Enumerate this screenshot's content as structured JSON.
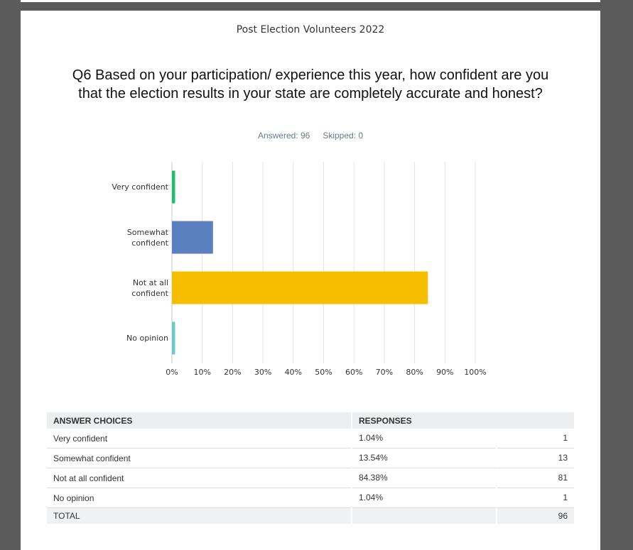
{
  "header": {
    "survey_title": "Post Election Volunteers 2022",
    "question": "Q6 Based on your participation/ experience this year, how confident are you that the election results in your state are completely accurate and honest?",
    "answered": "Answered: 96",
    "skipped": "Skipped: 0"
  },
  "chart_data": {
    "type": "bar",
    "orientation": "horizontal",
    "categories": [
      "Very confident",
      "Somewhat confident",
      "Not at all confident",
      "No opinion"
    ],
    "values": [
      1.04,
      13.54,
      84.38,
      1.04
    ],
    "colors": [
      "#1ebf6a",
      "#5a80bf",
      "#f7be00",
      "#6fcbcb"
    ],
    "xlim": [
      0,
      100
    ],
    "xticks": [
      {
        "value": 0,
        "label": "0%"
      },
      {
        "value": 10,
        "label": "10%"
      },
      {
        "value": 20,
        "label": "20%"
      },
      {
        "value": 30,
        "label": "30%"
      },
      {
        "value": 40,
        "label": "40%"
      },
      {
        "value": 50,
        "label": "50%"
      },
      {
        "value": 60,
        "label": "60%"
      },
      {
        "value": 70,
        "label": "70%"
      },
      {
        "value": 80,
        "label": "80%"
      },
      {
        "value": 90,
        "label": "90%"
      },
      {
        "value": 100,
        "label": "100%"
      }
    ],
    "grid": true
  },
  "table": {
    "headers": [
      "ANSWER CHOICES",
      "RESPONSES"
    ],
    "rows": [
      [
        "Very confident",
        "1.04%",
        1
      ],
      [
        "Somewhat confident",
        "13.54%",
        13
      ],
      [
        "Not at all confident",
        "84.38%",
        81
      ],
      [
        "No opinion",
        "1.04%",
        1
      ]
    ],
    "total": [
      "TOTAL",
      96
    ]
  }
}
